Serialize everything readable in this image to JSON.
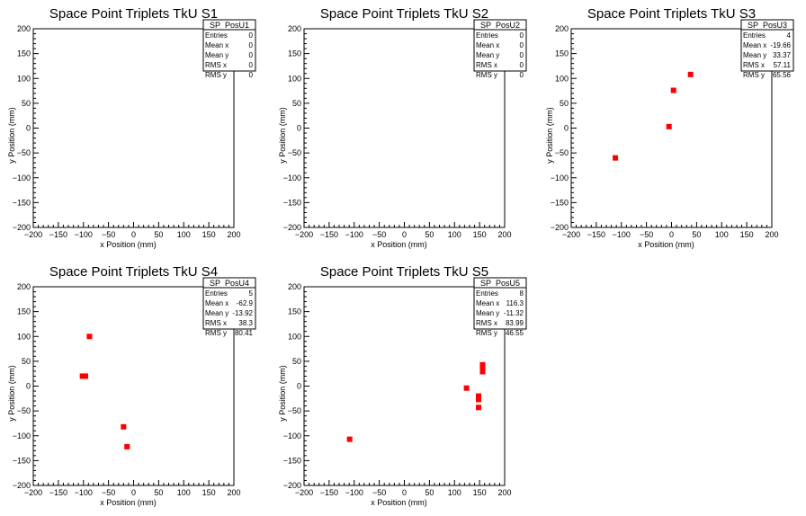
{
  "colors": {
    "marker": "#ff0000",
    "axis": "#000000",
    "background": "#ffffff"
  },
  "chart_data": [
    {
      "type": "scatter",
      "title": "Space Point Triplets TkU S1",
      "xlabel": "x Position (mm)",
      "ylabel": "y Position (mm)",
      "xlim": [
        -200,
        200
      ],
      "ylim": [
        -200,
        200
      ],
      "x_ticks": [
        "−200",
        "−150",
        "−100",
        "−50",
        "0",
        "50",
        "100",
        "150",
        "200"
      ],
      "y_ticks": [
        "−200",
        "−150",
        "−100",
        "−50",
        "0",
        "50",
        "100",
        "150",
        "200"
      ],
      "grid": false,
      "legend_position": "top-right",
      "stats": {
        "name": "SP_PosU1",
        "rows": [
          {
            "label": "Entries",
            "value": "0"
          },
          {
            "label": "Mean x",
            "value": "0"
          },
          {
            "label": "Mean y",
            "value": "0"
          },
          {
            "label": "RMS x",
            "value": "0"
          },
          {
            "label": "RMS y",
            "value": "0"
          }
        ]
      },
      "points": []
    },
    {
      "type": "scatter",
      "title": "Space Point Triplets TkU S2",
      "xlabel": "x Position (mm)",
      "ylabel": "y Position (mm)",
      "xlim": [
        -200,
        200
      ],
      "ylim": [
        -200,
        200
      ],
      "x_ticks": [
        "−200",
        "−150",
        "−100",
        "−50",
        "0",
        "50",
        "100",
        "150",
        "200"
      ],
      "y_ticks": [
        "−200",
        "−150",
        "−100",
        "−50",
        "0",
        "50",
        "100",
        "150",
        "200"
      ],
      "grid": false,
      "legend_position": "top-right",
      "stats": {
        "name": "SP_PosU2",
        "rows": [
          {
            "label": "Entries",
            "value": "0"
          },
          {
            "label": "Mean x",
            "value": "0"
          },
          {
            "label": "Mean y",
            "value": "0"
          },
          {
            "label": "RMS x",
            "value": "0"
          },
          {
            "label": "RMS y",
            "value": "0"
          }
        ]
      },
      "points": []
    },
    {
      "type": "scatter",
      "title": "Space Point Triplets TkU S3",
      "xlabel": "x Position (mm)",
      "ylabel": "y Position (mm)",
      "xlim": [
        -200,
        200
      ],
      "ylim": [
        -200,
        200
      ],
      "x_ticks": [
        "−200",
        "−150",
        "−100",
        "−50",
        "0",
        "50",
        "100",
        "150",
        "200"
      ],
      "y_ticks": [
        "−200",
        "−150",
        "−100",
        "−50",
        "0",
        "50",
        "100",
        "150",
        "200"
      ],
      "grid": false,
      "legend_position": "top-right",
      "stats": {
        "name": "SP_PosU3",
        "rows": [
          {
            "label": "Entries",
            "value": "4"
          },
          {
            "label": "Mean x",
            "value": "-19.66"
          },
          {
            "label": "Mean y",
            "value": "33.37"
          },
          {
            "label": "RMS x",
            "value": "57.11"
          },
          {
            "label": "RMS y",
            "value": "65.56"
          }
        ]
      },
      "points": [
        {
          "x": -112,
          "y": -60
        },
        {
          "x": -5,
          "y": 3
        },
        {
          "x": 4,
          "y": 76
        },
        {
          "x": 38,
          "y": 108
        }
      ]
    },
    {
      "type": "scatter",
      "title": "Space Point Triplets TkU S4",
      "xlabel": "x Position (mm)",
      "ylabel": "y Position (mm)",
      "xlim": [
        -200,
        200
      ],
      "ylim": [
        -200,
        200
      ],
      "x_ticks": [
        "−200",
        "−150",
        "−100",
        "−50",
        "0",
        "50",
        "100",
        "150",
        "200"
      ],
      "y_ticks": [
        "−200",
        "−150",
        "−100",
        "−50",
        "0",
        "50",
        "100",
        "150",
        "200"
      ],
      "grid": false,
      "legend_position": "top-right",
      "stats": {
        "name": "SP_PosU4",
        "rows": [
          {
            "label": "Entries",
            "value": "5"
          },
          {
            "label": "Mean x",
            "value": "-62.9"
          },
          {
            "label": "Mean y",
            "value": "-13.92"
          },
          {
            "label": "RMS x",
            "value": "38.3"
          },
          {
            "label": "RMS y",
            "value": "80.41"
          }
        ]
      },
      "points": [
        {
          "x": -88,
          "y": 100
        },
        {
          "x": -102,
          "y": 20
        },
        {
          "x": -96,
          "y": 20
        },
        {
          "x": -20,
          "y": -82
        },
        {
          "x": -13,
          "y": -122
        }
      ]
    },
    {
      "type": "scatter",
      "title": "Space Point Triplets TkU S5",
      "xlabel": "x Position (mm)",
      "ylabel": "y Position (mm)",
      "xlim": [
        -200,
        200
      ],
      "ylim": [
        -200,
        200
      ],
      "x_ticks": [
        "−200",
        "−150",
        "−100",
        "−50",
        "0",
        "50",
        "100",
        "150",
        "200"
      ],
      "y_ticks": [
        "−200",
        "−150",
        "−100",
        "−50",
        "0",
        "50",
        "100",
        "150",
        "200"
      ],
      "grid": false,
      "legend_position": "top-right",
      "stats": {
        "name": "SP_PosU5",
        "rows": [
          {
            "label": "Entries",
            "value": "8"
          },
          {
            "label": "Mean x",
            "value": "116.3"
          },
          {
            "label": "Mean y",
            "value": "-11.32"
          },
          {
            "label": "RMS x",
            "value": "83.99"
          },
          {
            "label": "RMS y",
            "value": "46.55"
          }
        ]
      },
      "points": [
        {
          "x": -109,
          "y": -107
        },
        {
          "x": 124,
          "y": -4
        },
        {
          "x": 148,
          "y": -20
        },
        {
          "x": 148,
          "y": -27
        },
        {
          "x": 148,
          "y": -43
        },
        {
          "x": 156,
          "y": 43
        },
        {
          "x": 156,
          "y": 37
        },
        {
          "x": 156,
          "y": 29
        }
      ]
    }
  ]
}
